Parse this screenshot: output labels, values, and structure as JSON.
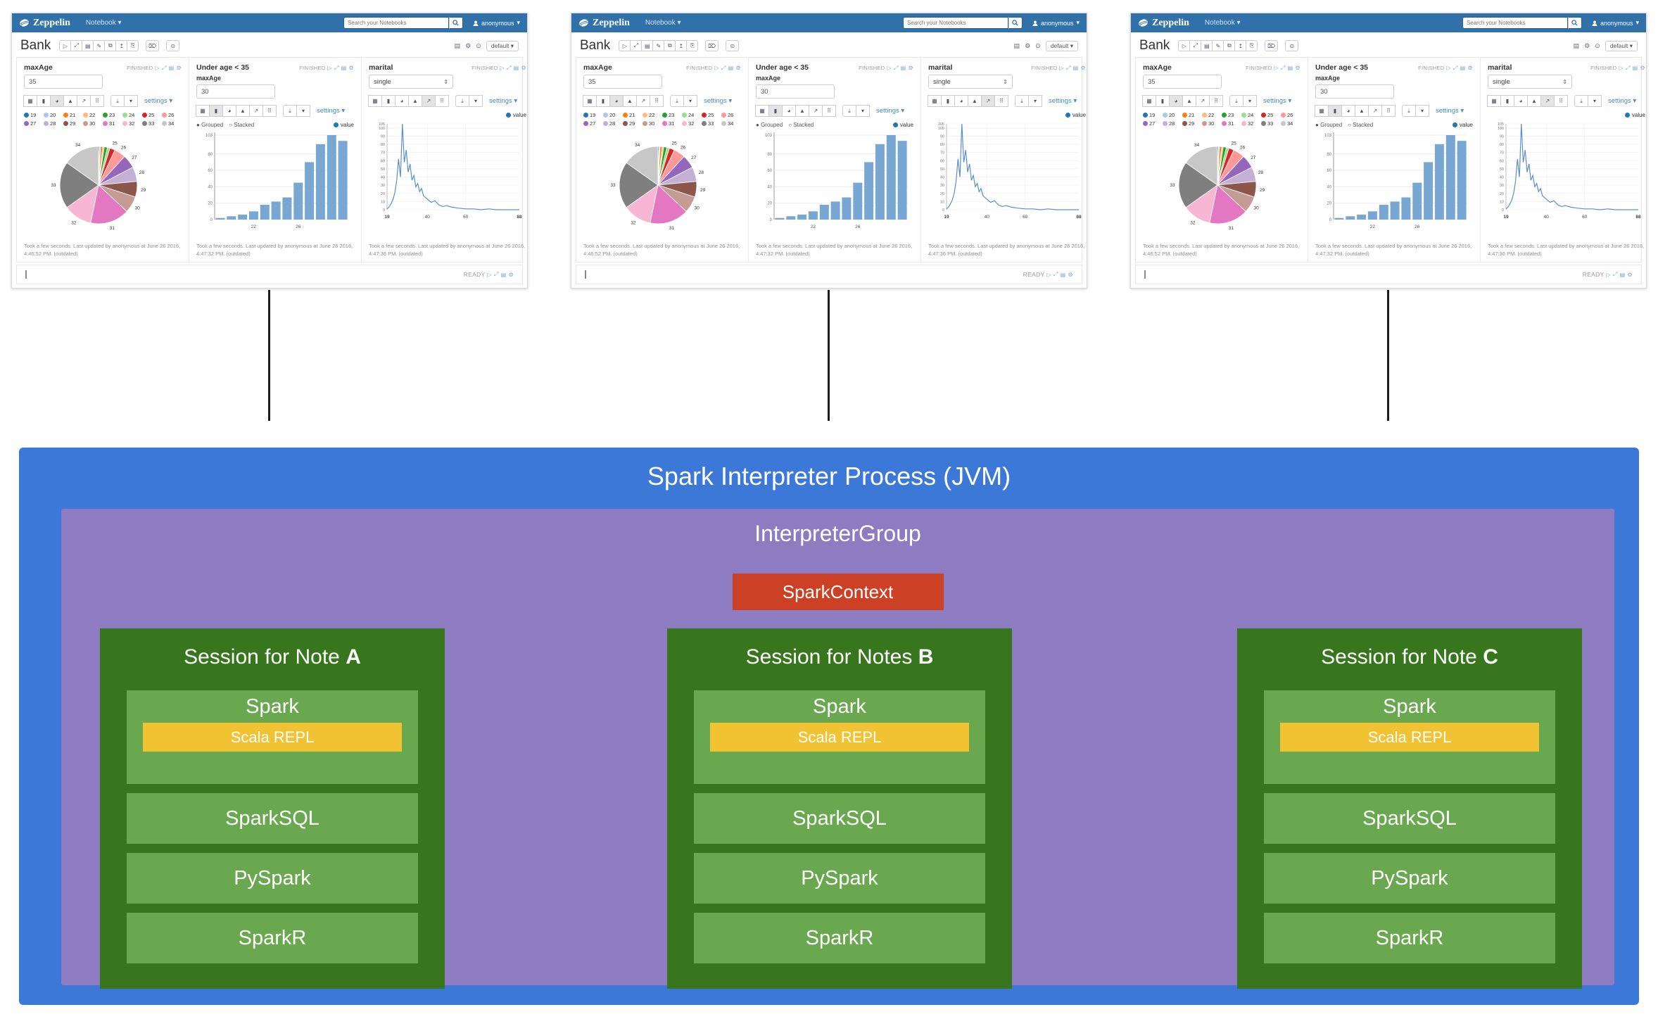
{
  "navbar": {
    "brand": "Zeppelin",
    "menu_label": "Notebook",
    "caret": "▾",
    "search_placeholder": "Search your Notebooks",
    "user_label": "anonymous"
  },
  "note_toolbar": {
    "title": "Bank",
    "icon_glyphs": [
      "▷",
      "⤢",
      "▤",
      "✎",
      "⧉",
      "↥",
      "⎘"
    ],
    "trash_glyph": "⌦",
    "clock_glyph": "⊙",
    "right_glyphs": [
      "▤",
      "⚙",
      "⊙"
    ],
    "interpreter_label": "default"
  },
  "chart_toolbar": {
    "type_glyphs": [
      "▦",
      "▮",
      "◕",
      "▲",
      "↗",
      "⠿"
    ],
    "type_names": [
      "table",
      "bar",
      "pie",
      "area",
      "line",
      "scatter"
    ],
    "download_glyph": "⤓",
    "caret": "▾",
    "settings_label": "settings"
  },
  "status_icons": [
    "▷",
    "⤢",
    "▤",
    "⚙"
  ],
  "paragraphs": [
    {
      "field_label": "maxAge",
      "field_value": "35",
      "status": "FINISHED",
      "selected_chart": 2,
      "footer": "Took a few seconds. Last updated by anonymous at June 26 2016, 4:46:52 PM. (outdated)"
    },
    {
      "title": "Under age < 35",
      "field_label": "maxAge",
      "field_value": "30",
      "status": "FINISHED",
      "selected_chart": 1,
      "grouped_label": "Grouped",
      "stacked_label": "Stacked",
      "series_label": "value",
      "footer": "Took a few seconds. Last updated by anonymous at June 26 2016, 4:47:32 PM. (outdated)"
    },
    {
      "field_label": "marital",
      "field_value": "single",
      "status": "FINISHED",
      "selected_chart": 4,
      "series_label": "value",
      "footer": "Took a few seconds. Last updated by anonymous at June 26 2016, 4:47:36 PM. (outdated)"
    }
  ],
  "statusbar": {
    "status": "READY"
  },
  "chart_data": [
    {
      "type": "pie",
      "categories": [
        "19",
        "20",
        "21",
        "22",
        "23",
        "24",
        "25",
        "26",
        "27",
        "28",
        "29",
        "30",
        "31",
        "32",
        "33",
        "34"
      ],
      "values": [
        2,
        2,
        4,
        3,
        6,
        5,
        10,
        22,
        26,
        28,
        30,
        32,
        75,
        55,
        90,
        70
      ],
      "colors": [
        "#1f77b4",
        "#aec7e8",
        "#ff7f0e",
        "#ffbb78",
        "#2ca02c",
        "#98df8a",
        "#d62728",
        "#ff9896",
        "#9467bd",
        "#c5b0d5",
        "#8c564b",
        "#c49c94",
        "#e377c2",
        "#f7b6d2",
        "#7f7f7f",
        "#c7c7c7"
      ],
      "legend_position": "top"
    },
    {
      "type": "bar",
      "categories": [
        "19",
        "20",
        "21",
        "22",
        "23",
        "24",
        "25",
        "26",
        "27",
        "28",
        "29",
        "30"
      ],
      "values": [
        2,
        4,
        6,
        10,
        18,
        22,
        27,
        45,
        70,
        92,
        103,
        96
      ],
      "series": "value",
      "color": "#79a7d4",
      "legend_color": "#1f77b4",
      "ylim": [
        0,
        103
      ],
      "yticks": [
        103,
        80,
        60,
        40,
        20,
        0
      ],
      "xticks": [
        "22",
        "26"
      ],
      "xtick_idx": [
        3,
        7
      ],
      "grid": true
    },
    {
      "type": "line",
      "x": [
        19,
        20,
        21,
        22,
        23,
        24,
        25,
        26,
        27,
        28,
        29,
        30,
        31,
        32,
        33,
        34,
        35,
        36,
        37,
        38,
        40,
        42,
        44,
        46,
        48,
        50,
        53,
        56,
        60,
        64,
        68,
        72,
        76,
        80,
        84,
        88
      ],
      "y": [
        1,
        3,
        7,
        12,
        20,
        35,
        62,
        40,
        105,
        58,
        73,
        46,
        56,
        36,
        42,
        28,
        32,
        22,
        26,
        17,
        13,
        9,
        11,
        6,
        4,
        5,
        3,
        2,
        1,
        1,
        0,
        1,
        0,
        0,
        0,
        0
      ],
      "series": "value",
      "color": "#5b8fc9",
      "legend_color": "#1f77b4",
      "xlim": [
        19,
        88
      ],
      "ylim": [
        0,
        105
      ],
      "yticks": [
        105,
        100,
        90,
        80,
        70,
        60,
        50,
        40,
        30,
        20,
        10,
        0
      ],
      "xticks": [
        "19",
        "40",
        "60",
        "88"
      ],
      "grid": true
    }
  ],
  "diagram": {
    "process_title": "Spark Interpreter Process (JVM)",
    "group_title": "InterpreterGroup",
    "context_label": "SparkContext",
    "sessions": [
      {
        "prefix": "Session for Note ",
        "letter": "A"
      },
      {
        "prefix": "Session for Notes ",
        "letter": "B"
      },
      {
        "prefix": "Session for Note ",
        "letter": "C"
      }
    ],
    "row_labels": {
      "spark": "Spark",
      "repl": "Scala REPL",
      "sql": "SparkSQL",
      "py": "PySpark",
      "r": "SparkR"
    },
    "colors": {
      "process": "#3c78d8",
      "group": "#8e7cc3",
      "context": "#cc4125",
      "session": "#38761d",
      "row": "#6aa84f",
      "repl": "#f1c232"
    }
  }
}
